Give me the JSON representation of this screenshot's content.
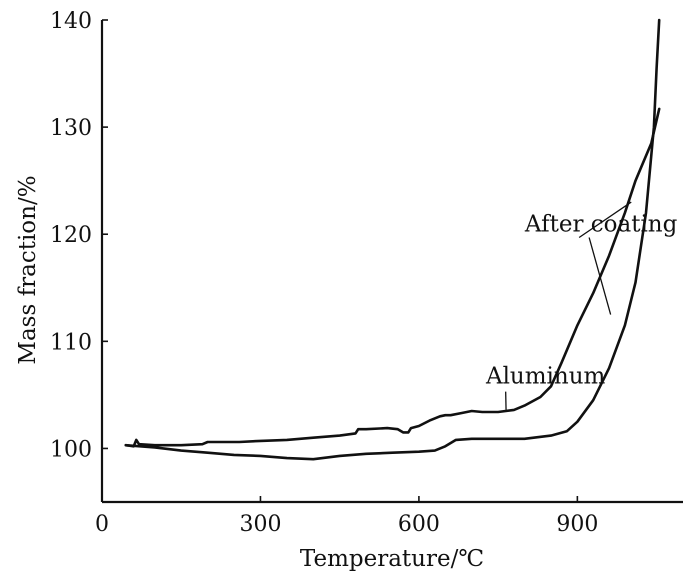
{
  "chart_data": {
    "type": "line",
    "xlabel": "Temperature/℃",
    "ylabel": "Mass fraction/%",
    "xlim": [
      0,
      1100
    ],
    "ylim": [
      95,
      140
    ],
    "xticks": [
      0,
      300,
      600,
      900
    ],
    "yticks": [
      100,
      110,
      120,
      130,
      140
    ],
    "grid": false,
    "series": [
      {
        "name": "Aluminum",
        "x": [
          45,
          60,
          65,
          70,
          100,
          150,
          190,
          200,
          260,
          300,
          350,
          400,
          450,
          480,
          485,
          500,
          540,
          560,
          570,
          580,
          585,
          600,
          620,
          640,
          650,
          660,
          680,
          700,
          720,
          750,
          780,
          800,
          830,
          850,
          870,
          900,
          930,
          960,
          990,
          1010,
          1040,
          1055
        ],
        "y": [
          100.3,
          100.2,
          100.8,
          100.4,
          100.3,
          100.3,
          100.4,
          100.6,
          100.6,
          100.7,
          100.8,
          101.0,
          101.2,
          101.4,
          101.8,
          101.8,
          101.9,
          101.8,
          101.5,
          101.5,
          101.9,
          102.1,
          102.6,
          103.0,
          103.1,
          103.1,
          103.3,
          103.5,
          103.4,
          103.4,
          103.6,
          104.0,
          104.8,
          105.8,
          108.0,
          111.5,
          114.5,
          118.0,
          122.0,
          125.0,
          128.5,
          131.7
        ]
      },
      {
        "name": "After coating",
        "x": [
          45,
          100,
          150,
          200,
          250,
          300,
          350,
          400,
          450,
          500,
          550,
          600,
          630,
          650,
          670,
          700,
          750,
          800,
          850,
          880,
          900,
          930,
          960,
          990,
          1010,
          1030,
          1045,
          1050,
          1055
        ],
        "y": [
          100.3,
          100.1,
          99.8,
          99.6,
          99.4,
          99.3,
          99.1,
          99.0,
          99.3,
          99.5,
          99.6,
          99.7,
          99.8,
          100.2,
          100.8,
          100.9,
          100.9,
          100.9,
          101.2,
          101.6,
          102.5,
          104.5,
          107.5,
          111.5,
          115.5,
          122.0,
          130.0,
          135.5,
          140.0
        ]
      }
    ],
    "annotations": [
      {
        "text": "After coating",
        "x": 945,
        "y": 121.0
      },
      {
        "text": "Aluminum",
        "x": 840,
        "y": 106.8
      }
    ]
  }
}
